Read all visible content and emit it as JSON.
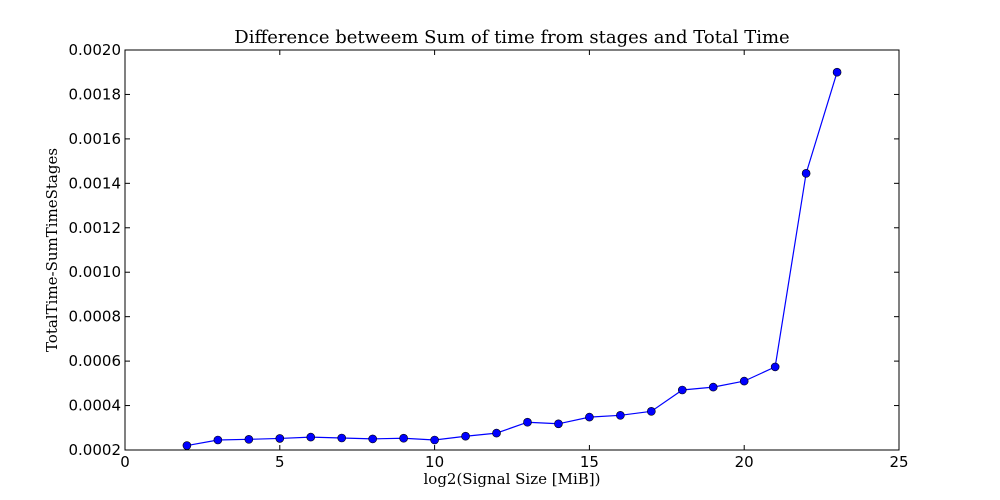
{
  "chart_data": {
    "type": "line",
    "title": "Difference betweem Sum of time from stages and Total Time",
    "xlabel": "log2(Signal Size [MiB])",
    "ylabel": "TotalTime-SumTimeStages",
    "xlim": [
      0,
      25
    ],
    "ylim": [
      0.0002,
      0.002
    ],
    "xticks": [
      0,
      5,
      10,
      15,
      20,
      25
    ],
    "xtick_labels": [
      "0",
      "5",
      "10",
      "15",
      "20",
      "25"
    ],
    "yticks": [
      0.0002,
      0.0004,
      0.0006,
      0.0008,
      0.001,
      0.0012,
      0.0014,
      0.0016,
      0.0018,
      0.002
    ],
    "ytick_labels": [
      "0.0002",
      "0.0004",
      "0.0006",
      "0.0008",
      "0.0010",
      "0.0012",
      "0.0014",
      "0.0016",
      "0.0018",
      "0.0020"
    ],
    "grid": false,
    "legend": false,
    "series": [
      {
        "color": "#0000ff",
        "marker": "circle",
        "x": [
          2,
          3,
          4,
          5,
          6,
          7,
          8,
          9,
          10,
          11,
          12,
          13,
          14,
          15,
          16,
          17,
          18,
          19,
          20,
          21,
          22,
          23
        ],
        "y": [
          0.00022,
          0.000245,
          0.000248,
          0.000252,
          0.000258,
          0.000254,
          0.00025,
          0.000253,
          0.000245,
          0.000262,
          0.000276,
          0.000325,
          0.000318,
          0.000348,
          0.000356,
          0.000374,
          0.00047,
          0.000483,
          0.00051,
          0.000574,
          0.001445,
          0.0019
        ]
      }
    ]
  }
}
